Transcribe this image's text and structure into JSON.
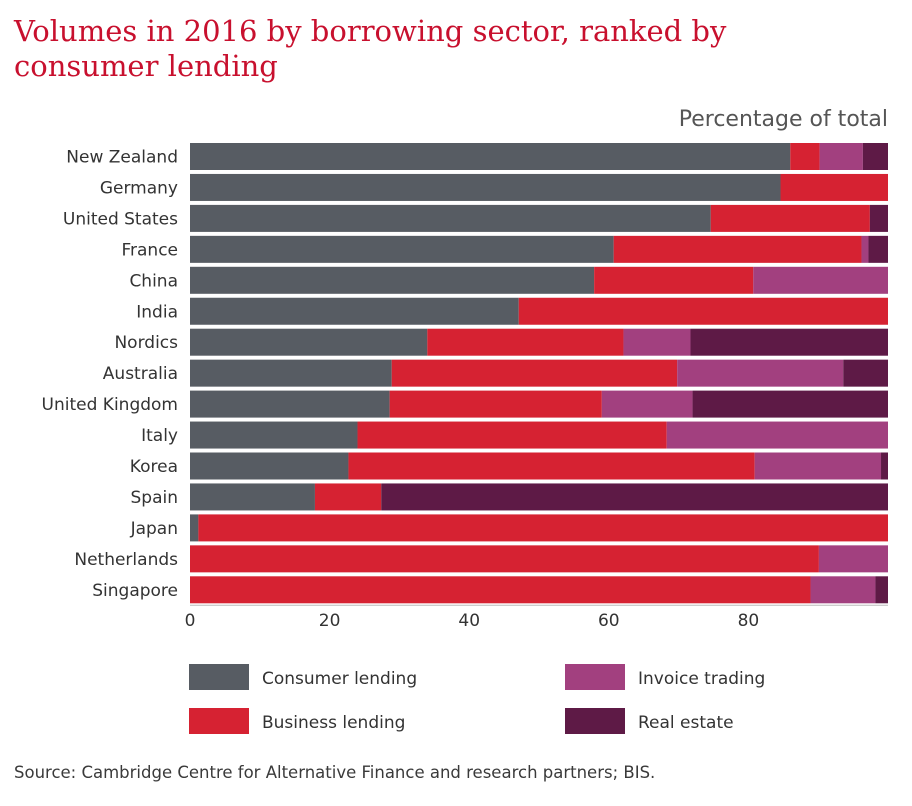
{
  "title": "Volumes in 2016 by borrowing sector, ranked by consumer lending",
  "subtitle": "Percentage of total",
  "source": "Source: Cambridge Centre for Alternative Finance and research partners; BIS.",
  "chart_data": {
    "type": "bar",
    "orientation": "horizontal",
    "stacked": true,
    "categories": [
      "New Zealand",
      "Germany",
      "United States",
      "France",
      "China",
      "India",
      "Nordics",
      "Australia",
      "United Kingdom",
      "Italy",
      "Korea",
      "Spain",
      "Japan",
      "Netherlands",
      "Singapore"
    ],
    "series": [
      {
        "name": "Consumer lending",
        "color": "#575c63",
        "values": [
          86,
          84.6,
          74.6,
          60.7,
          57.9,
          47.1,
          34,
          28.9,
          28.6,
          24,
          22.7,
          17.9,
          1.2,
          0,
          0
        ]
      },
      {
        "name": "Business lending",
        "color": "#d62232",
        "values": [
          4.2,
          15.4,
          22.8,
          35.5,
          22.8,
          52.9,
          28.1,
          40.9,
          30.4,
          44.3,
          58.2,
          9.5,
          98.8,
          90.1,
          88.9
        ]
      },
      {
        "name": "Invoice trading",
        "color": "#a2407f",
        "values": [
          6.2,
          0,
          0,
          1,
          19.3,
          0,
          9.6,
          23.8,
          13,
          31.7,
          18.1,
          0,
          0,
          9.9,
          9.3
        ]
      },
      {
        "name": "Real estate",
        "color": "#5e1a46",
        "values": [
          3.6,
          0,
          2.6,
          2.8,
          0,
          0,
          28.3,
          6.4,
          28,
          0,
          1,
          72.6,
          0,
          0,
          1.8
        ]
      }
    ],
    "xlim": [
      0,
      100
    ],
    "x_ticks": [
      "0",
      "20",
      "40",
      "60",
      "80"
    ],
    "xlabel": "",
    "ylabel": "",
    "legend_position": "bottom",
    "grid": false
  }
}
